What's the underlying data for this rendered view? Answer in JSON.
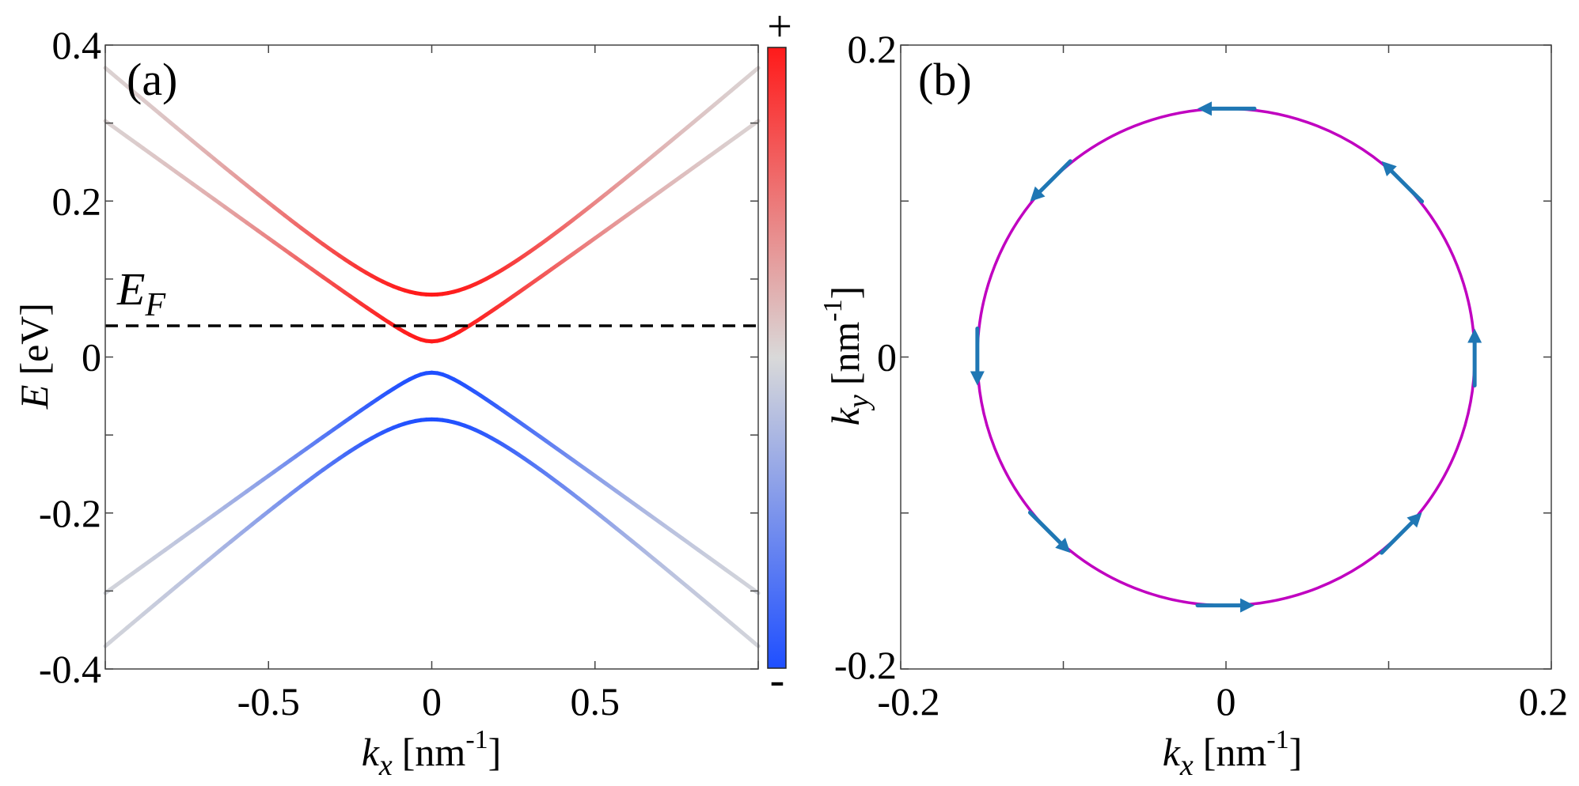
{
  "chart_data": [
    {
      "panel": "(a)",
      "type": "line",
      "title": "",
      "xlabel": {
        "symbol": "k",
        "subscript": "x",
        "unit_text": "[nm",
        "unit_sup": "-1",
        "unit_close": "]"
      },
      "ylabel": {
        "symbol": "E",
        "unit_text": "[eV]"
      },
      "xlim": [
        -1.0,
        1.0
      ],
      "ylim": [
        -0.4,
        0.4
      ],
      "xticks": [
        -0.5,
        0,
        0.5
      ],
      "xtick_labels": [
        "-0.5",
        "0",
        "0.5"
      ],
      "xtick_minor": [
        -1.0,
        -0.5,
        0,
        0.5,
        1.0
      ],
      "yticks": [
        -0.4,
        -0.2,
        0,
        0.2,
        0.4
      ],
      "ytick_labels": [
        "-0.4",
        "-0.2",
        "0",
        "0.2",
        "0.4"
      ],
      "ytick_minor": [
        -0.4,
        -0.3,
        -0.2,
        -0.1,
        0,
        0.1,
        0.2,
        0.3,
        0.4
      ],
      "fermi_level": {
        "label_symbol": "E",
        "label_subscript": "F",
        "value": 0.04
      },
      "series": [
        {
          "name": "conduction band 2",
          "gap": 0.08,
          "slope": 0.362,
          "sign": 1
        },
        {
          "name": "conduction band 1",
          "gap": 0.02,
          "slope": 0.302,
          "sign": 1
        },
        {
          "name": "valence band 1",
          "gap": 0.02,
          "slope": 0.302,
          "sign": -1
        },
        {
          "name": "valence band 2",
          "gap": 0.08,
          "slope": 0.362,
          "sign": -1
        }
      ],
      "colorbar": {
        "top_label": "+",
        "bottom_label": "-",
        "colors": [
          "#ff1a1a",
          "#d9d9d9",
          "#1f4fff"
        ]
      }
    },
    {
      "panel": "(b)",
      "type": "line",
      "title": "",
      "xlabel": {
        "symbol": "k",
        "subscript": "x",
        "unit_text": "[nm",
        "unit_sup": "-1",
        "unit_close": "]"
      },
      "ylabel": {
        "symbol": "k",
        "subscript": "y",
        "unit_text": "[nm",
        "unit_sup": "-1",
        "unit_close": "]"
      },
      "xlim": [
        -0.2,
        0.2
      ],
      "ylim": [
        -0.2,
        0.2
      ],
      "xticks": [
        -0.2,
        0,
        0.2
      ],
      "xtick_labels": [
        "-0.2",
        "0",
        "0.2"
      ],
      "xtick_minor": [
        -0.2,
        -0.1,
        0,
        0.1,
        0.2
      ],
      "yticks": [
        -0.2,
        0,
        0.2
      ],
      "ytick_labels": [
        "-0.2",
        "0",
        "0.2"
      ],
      "ytick_minor": [
        -0.2,
        -0.1,
        0,
        0.1,
        0.2
      ],
      "fermi_contour": {
        "center": [
          0,
          0
        ],
        "radius": 0.156,
        "color": "#c000c0"
      },
      "spin_arrows": {
        "color": "#1f77b4",
        "angles_deg": [
          0,
          45,
          90,
          135,
          180,
          225,
          270,
          315
        ],
        "direction": "counterclockwise"
      }
    }
  ]
}
